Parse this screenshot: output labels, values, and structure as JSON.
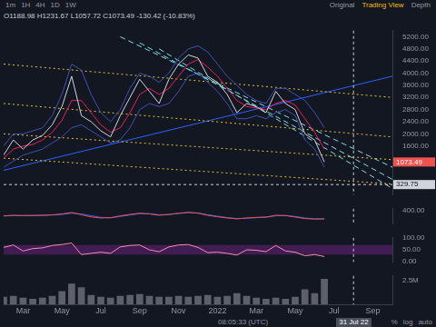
{
  "header": {
    "intervals": [
      "1m",
      "1H",
      "4H",
      "1D",
      "1W"
    ],
    "views": [
      "Original",
      "Trading View",
      "Depth"
    ],
    "active_view": "Trading View",
    "ohlc": "O1188.98 H1231.67 L1057.72 C1073.49 -130.42 (-10.83%)"
  },
  "footer": {
    "time": "08:05:33 (UTC)",
    "options": [
      "%",
      "log",
      "auto"
    ]
  },
  "chart_data": [
    {
      "type": "line",
      "categories": [
        null,
        null,
        "Mar",
        null,
        null,
        null,
        "May",
        null,
        null,
        null,
        "Jul",
        null,
        null,
        null,
        "Sep",
        null,
        null,
        null,
        "Nov",
        null,
        null,
        null,
        "2022",
        null,
        null,
        null,
        "Mar",
        null,
        null,
        null,
        "May",
        null,
        null,
        null,
        "Jul",
        null,
        null,
        null,
        "Sep",
        null,
        null
      ],
      "ylim": [
        0,
        5400
      ],
      "yticks": [
        {
          "value": 1600,
          "label": "1600.00"
        },
        {
          "value": 2000,
          "label": "2000.00"
        },
        {
          "value": 2400,
          "label": "2400.00"
        },
        {
          "value": 2800,
          "label": "2800.00"
        },
        {
          "value": 3200,
          "label": "3200.00"
        },
        {
          "value": 3600,
          "label": "3600.00"
        },
        {
          "value": 4000,
          "label": "4000.00"
        },
        {
          "value": 4400,
          "label": "4400.00"
        },
        {
          "value": 4800,
          "label": "4800.00"
        },
        {
          "value": 5200,
          "label": "5200.00"
        }
      ],
      "grid": false,
      "tick_labels": "y",
      "crosshair": {
        "x": 36,
        "y": 329.75,
        "label": "31 Jul 22"
      },
      "series": [
        {
          "color": "#d1d4dc",
          "values": [
            1300,
            1800,
            1500,
            1800,
            1950,
            2300,
            2900,
            3900,
            2600,
            2400,
            2100,
            1900,
            2600,
            3200,
            3800,
            3400,
            3000,
            3800,
            4300,
            4600,
            4500,
            3900,
            3700,
            3300,
            2700,
            3000,
            2900,
            2700,
            3400,
            3000,
            2800,
            2000,
            1800,
            1073.49,
            null,
            null,
            null,
            null,
            null,
            null,
            null
          ]
        },
        {
          "color": "#e91e63",
          "values": [
            1200,
            1500,
            1600,
            1650,
            1800,
            2050,
            2450,
            3100,
            3100,
            2700,
            2300,
            2050,
            2200,
            2700,
            3300,
            3500,
            3300,
            3500,
            3900,
            4300,
            4450,
            4200,
            3900,
            3500,
            3100,
            2900,
            2850,
            2800,
            3000,
            3100,
            2950,
            2500,
            2050,
            1500,
            null,
            null,
            null,
            null,
            null,
            null,
            null
          ]
        },
        {
          "color": "#3f51b5",
          "values": [
            1600,
            2000,
            2000,
            2100,
            2200,
            2600,
            3300,
            4300,
            4100,
            3300,
            2700,
            2400,
            2800,
            3500,
            4000,
            3900,
            3700,
            4000,
            4500,
            4800,
            4900,
            4700,
            4300,
            3900,
            3600,
            3300,
            3100,
            3000,
            3500,
            3500,
            3300,
            3100,
            2700,
            2200,
            null,
            null,
            null,
            null,
            null,
            null,
            null
          ]
        },
        {
          "color": "#3f51b5",
          "values": [
            900,
            1100,
            1300,
            1400,
            1500,
            1700,
            1900,
            2200,
            2300,
            2100,
            1900,
            1700,
            1800,
            2200,
            2800,
            3000,
            2900,
            3000,
            3400,
            3900,
            4000,
            3700,
            3400,
            3000,
            2500,
            2500,
            2600,
            2500,
            2700,
            2800,
            2600,
            1800,
            1500,
            900,
            null,
            null,
            null,
            null,
            null,
            null,
            null
          ]
        },
        {
          "color": "#e6c229",
          "line_style": "dotted",
          "x": [
            0,
            40
          ],
          "values": [
            4300,
            3200
          ]
        },
        {
          "color": "#e6c229",
          "line_style": "dotted",
          "x": [
            0,
            40
          ],
          "values": [
            3000,
            1900
          ]
        },
        {
          "color": "#e6c229",
          "line_style": "dotted",
          "x": [
            0,
            40
          ],
          "values": [
            2000,
            1150
          ]
        },
        {
          "color": "#e6c229",
          "line_style": "dotted",
          "x": [
            0,
            40
          ],
          "values": [
            1200,
            350
          ]
        },
        {
          "color": "#2962ff",
          "x": [
            0,
            40
          ],
          "values": [
            800,
            3900
          ]
        },
        {
          "color": "#80deea",
          "line_style": "dashed",
          "x": [
            12,
            40
          ],
          "values": [
            5200,
            900
          ]
        },
        {
          "color": "#80deea",
          "line_style": "dashed",
          "x": [
            14,
            40
          ],
          "values": [
            5000,
            500
          ]
        },
        {
          "color": "#80deea",
          "line_style": "dashed",
          "x": [
            16,
            40
          ],
          "values": [
            4800,
            200
          ]
        }
      ]
    },
    {
      "type": "line",
      "categories": [
        null,
        null,
        "Mar",
        null,
        null,
        null,
        "May",
        null,
        null,
        null,
        "Jul",
        null,
        null,
        null,
        "Sep",
        null,
        null,
        null,
        "Nov",
        null,
        null,
        null,
        "2022",
        null,
        null,
        null,
        "Mar",
        null,
        null,
        null,
        "May",
        null,
        null,
        null,
        "Jul",
        null,
        null,
        null,
        "Sep",
        null,
        null
      ],
      "ylim": [
        -500,
        500
      ],
      "yticks": [
        {
          "value": 400,
          "label": "400.00"
        }
      ],
      "grid": false,
      "tick_labels": "y",
      "series": [
        {
          "color": "#ef5350",
          "values": [
            20,
            60,
            40,
            50,
            60,
            90,
            150,
            250,
            100,
            -50,
            -120,
            -100,
            20,
            120,
            200,
            150,
            60,
            120,
            200,
            260,
            200,
            60,
            -40,
            -120,
            -180,
            -120,
            -80,
            -60,
            60,
            40,
            -60,
            -160,
            -190,
            -175.58,
            null,
            null,
            null,
            null,
            null,
            null,
            null
          ]
        },
        {
          "color": "#2962ff",
          "values": [
            10,
            40,
            45,
            45,
            55,
            75,
            120,
            200,
            150,
            30,
            -80,
            -110,
            -20,
            80,
            170,
            170,
            100,
            110,
            180,
            240,
            220,
            100,
            0,
            -90,
            -160,
            -140,
            -100,
            -70,
            20,
            50,
            -20,
            -120,
            -180,
            -190,
            null,
            null,
            null,
            null,
            null,
            null,
            null
          ]
        }
      ]
    },
    {
      "type": "line",
      "categories": [
        null,
        null,
        "Mar",
        null,
        null,
        null,
        "May",
        null,
        null,
        null,
        "Jul",
        null,
        null,
        null,
        "Sep",
        null,
        null,
        null,
        "Nov",
        null,
        null,
        null,
        "2022",
        null,
        null,
        null,
        "Mar",
        null,
        null,
        null,
        "May",
        null,
        null,
        null,
        "Jul",
        null,
        null,
        null,
        "Sep",
        null,
        null
      ],
      "ylim": [
        0,
        100
      ],
      "yticks": [
        {
          "value": 0,
          "label": "0.00"
        },
        {
          "value": 50,
          "label": "50.00"
        },
        {
          "value": 100,
          "label": "100.00"
        }
      ],
      "grid": false,
      "tick_labels": "y",
      "band": {
        "values": [
          30,
          70
        ],
        "color": "#9c27b0"
      },
      "series": [
        {
          "color": "#f48fb1",
          "values": [
            60,
            70,
            45,
            55,
            58,
            68,
            72,
            78,
            30,
            35,
            40,
            35,
            62,
            68,
            70,
            50,
            42,
            62,
            70,
            72,
            60,
            38,
            40,
            35,
            28,
            50,
            48,
            42,
            68,
            45,
            40,
            25,
            30,
            22,
            null,
            null,
            null,
            null,
            null,
            null,
            null
          ]
        }
      ]
    },
    {
      "type": "bar",
      "categories": [
        null,
        null,
        "Mar",
        null,
        null,
        null,
        "May",
        null,
        null,
        null,
        "Jul",
        null,
        null,
        null,
        "Sep",
        null,
        null,
        null,
        "Nov",
        null,
        null,
        null,
        "2022",
        null,
        null,
        null,
        "Mar",
        null,
        null,
        null,
        "May",
        null,
        null,
        null,
        "Jul",
        null,
        null,
        null,
        "Sep",
        null,
        null
      ],
      "ylim": [
        0,
        3000000
      ],
      "yticks": [
        {
          "value": 2500000,
          "label": "2.5M"
        }
      ],
      "grid": false,
      "color": "#5d606b",
      "values": [
        800000,
        900000,
        700000,
        600000,
        700000,
        900000,
        1400000,
        2200000,
        1800000,
        1000000,
        800000,
        700000,
        900000,
        1000000,
        1100000,
        900000,
        800000,
        800000,
        900000,
        800000,
        900000,
        1000000,
        800000,
        900000,
        1200000,
        900000,
        700000,
        600000,
        700000,
        600000,
        800000,
        1600000,
        1200000,
        2700000,
        null,
        null,
        null,
        null,
        null,
        null,
        null
      ]
    }
  ]
}
